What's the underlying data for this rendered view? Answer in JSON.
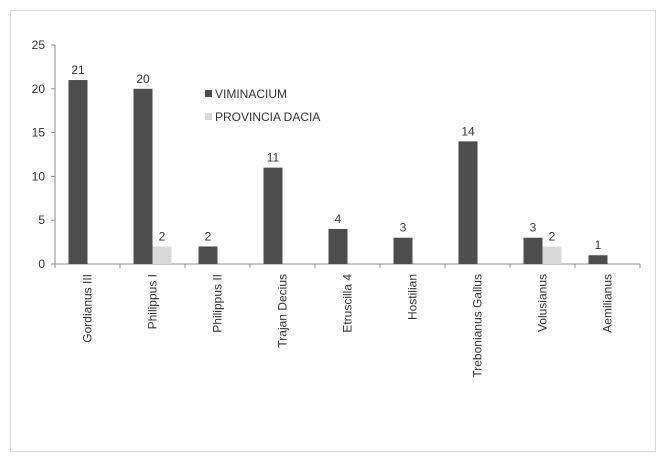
{
  "chart_data": {
    "type": "bar",
    "title": "",
    "xlabel": "",
    "ylabel": "",
    "ylim": [
      0,
      25
    ],
    "yticks": [
      0,
      5,
      10,
      15,
      20,
      25
    ],
    "grid": false,
    "legend_position": "top-center",
    "categories": [
      "Gordianus III",
      "Philippus I",
      "Philippus II",
      "Trajan Decius",
      "Etruscilla 4",
      "Hostilian",
      "Trebonianus Gallus",
      "Volusianus",
      "Aemilianus"
    ],
    "series": [
      {
        "name": "VIMINACIUM",
        "color": "#4d4d4d",
        "values": [
          21,
          20,
          2,
          11,
          4,
          3,
          14,
          3,
          1
        ],
        "labels": [
          "21",
          "20",
          "2",
          "11",
          "4",
          "3",
          "14",
          "3",
          "1"
        ]
      },
      {
        "name": "PROVINCIA DACIA",
        "color": "#d9d9d9",
        "values": [
          0,
          2,
          0,
          0,
          0,
          0,
          0,
          2,
          0
        ],
        "labels": [
          "",
          "2",
          "",
          "",
          "",
          "",
          "",
          "2",
          ""
        ]
      }
    ]
  }
}
